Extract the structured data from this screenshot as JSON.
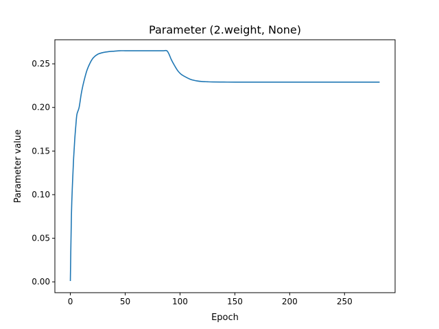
{
  "chart_data": {
    "type": "line",
    "title": "Parameter (2.weight, None)",
    "xlabel": "Epoch",
    "ylabel": "Parameter value",
    "xlim": [
      -14.1,
      296.1
    ],
    "ylim": [
      -0.0124,
      0.2776
    ],
    "xticks": [
      0,
      50,
      100,
      150,
      200,
      250
    ],
    "yticks": [
      0.0,
      0.05,
      0.1,
      0.15,
      0.2,
      0.25
    ],
    "ytick_labels": [
      "0.00",
      "0.05",
      "0.10",
      "0.15",
      "0.20",
      "0.25"
    ],
    "grid": false,
    "series": [
      {
        "color": "#1f77b4",
        "x": [
          0,
          1,
          2,
          3,
          4,
          5,
          6,
          8,
          10,
          12,
          15,
          18,
          21,
          25,
          30,
          35,
          40,
          45,
          50,
          55,
          60,
          65,
          70,
          75,
          80,
          85,
          88,
          90,
          92,
          95,
          98,
          101,
          105,
          110,
          115,
          120,
          125,
          130,
          140,
          150,
          170,
          200,
          230,
          260,
          282
        ],
        "y": [
          0.001,
          0.077,
          0.114,
          0.142,
          0.163,
          0.179,
          0.192,
          0.2,
          0.216,
          0.228,
          0.242,
          0.251,
          0.257,
          0.261,
          0.263,
          0.264,
          0.2645,
          0.265,
          0.265,
          0.265,
          0.265,
          0.265,
          0.265,
          0.265,
          0.265,
          0.265,
          0.265,
          0.261,
          0.255,
          0.248,
          0.242,
          0.238,
          0.235,
          0.232,
          0.2305,
          0.2297,
          0.2294,
          0.2292,
          0.2291,
          0.229,
          0.229,
          0.229,
          0.229,
          0.229,
          0.229
        ]
      }
    ]
  }
}
